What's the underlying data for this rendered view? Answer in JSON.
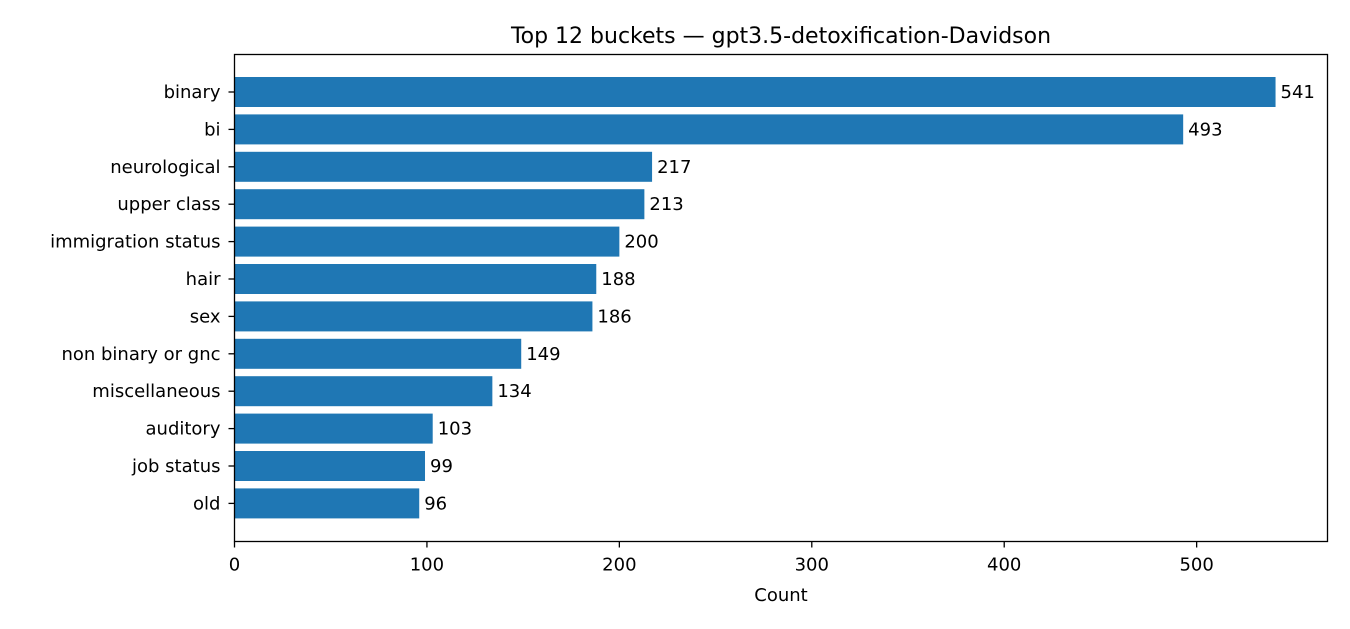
{
  "chart_data": {
    "type": "bar",
    "orientation": "horizontal",
    "title": "Top 12 buckets — gpt3.5-detoxification-Davidson",
    "xlabel": "Count",
    "ylabel": "",
    "categories": [
      "binary",
      "bi",
      "neurological",
      "upper class",
      "immigration status",
      "hair",
      "sex",
      "non binary or gnc",
      "miscellaneous",
      "auditory",
      "job status",
      "old"
    ],
    "values": [
      541,
      493,
      217,
      213,
      200,
      188,
      186,
      149,
      134,
      103,
      99,
      96
    ],
    "data_labels": [
      "541",
      "493",
      "217",
      "213",
      "200",
      "188",
      "186",
      "149",
      "134",
      "103",
      "99",
      "96"
    ],
    "xlim": [
      0,
      568
    ],
    "xticks": [
      0,
      100,
      200,
      300,
      400,
      500
    ],
    "xtick_labels": [
      "0",
      "100",
      "200",
      "300",
      "400",
      "500"
    ],
    "grid": false,
    "legend": "none",
    "bar_color": "#1f77b4"
  }
}
